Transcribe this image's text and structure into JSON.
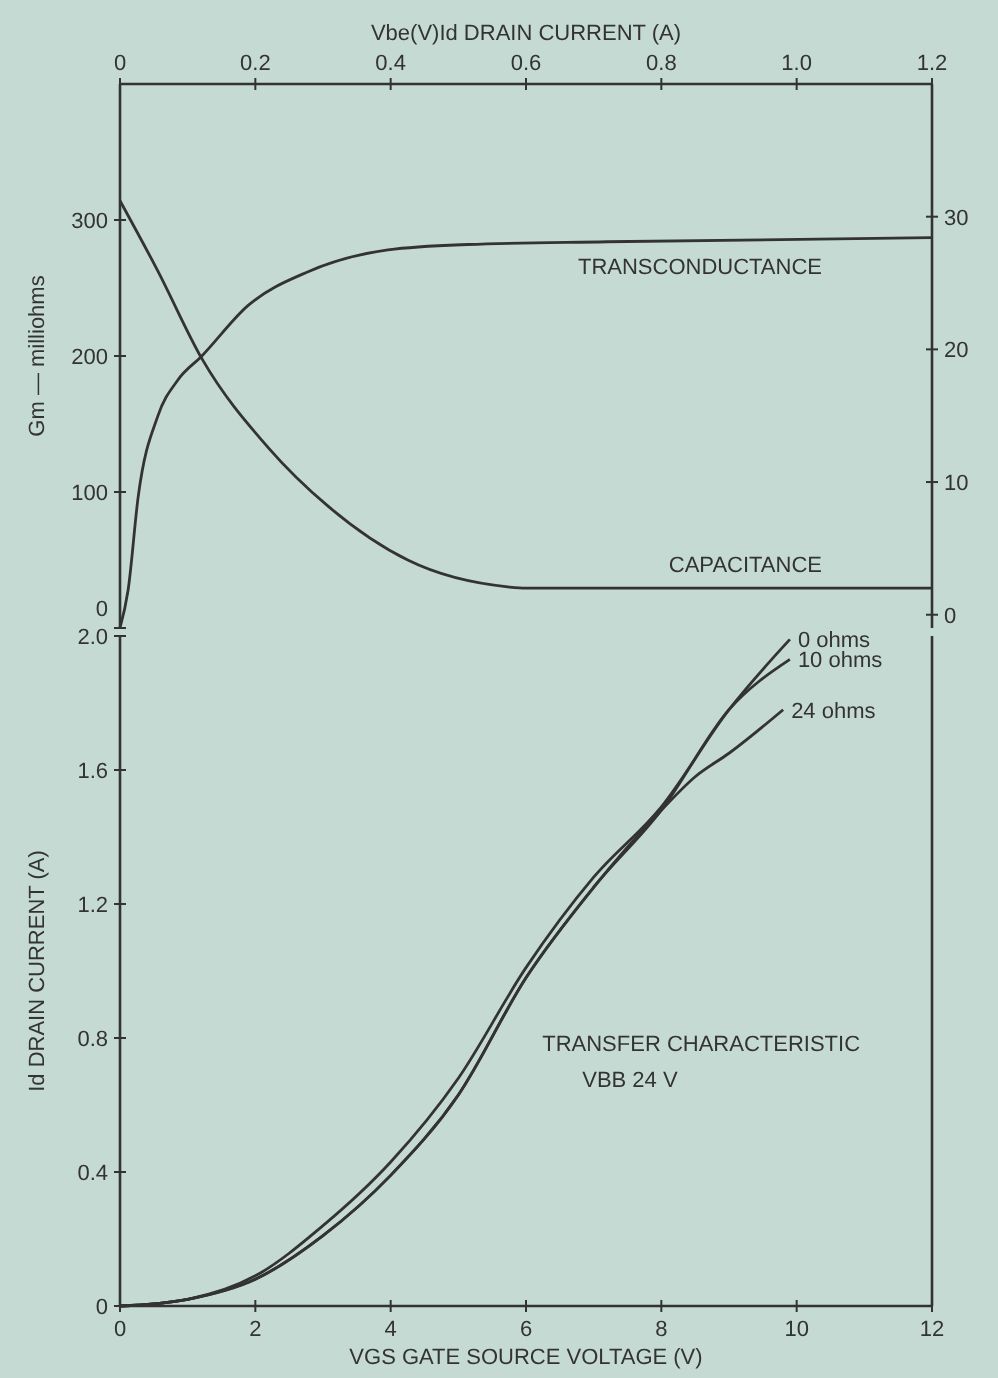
{
  "chart_data": [
    {
      "type": "line",
      "xlabel": "Vbe(V)Id DRAIN CURRENT (A)",
      "ylabel": "Gm — milliohms",
      "xlim": [
        0,
        1.2
      ],
      "xticks": [
        0,
        0.2,
        0.4,
        0.6,
        0.8,
        {
          "value": 1.0,
          "label": "1.0"
        },
        1.2
      ],
      "ylim": [
        0,
        400
      ],
      "yticks": [
        0,
        100,
        200,
        300
      ],
      "y2lim": [
        -1,
        40
      ],
      "y2ticks": [
        0,
        10,
        20,
        30
      ],
      "grid": false,
      "legend": false,
      "series": [
        {
          "name": "TRANSCONDUCTANCE",
          "color": "#333333",
          "x": [
            0,
            0.012,
            0.027,
            0.056,
            0.085,
            0.121,
            0.189,
            0.278,
            0.396,
            0.514,
            0.72,
            1.2
          ],
          "values": [
            0,
            28,
            97,
            156,
            182,
            200,
            237,
            262,
            278,
            282,
            284,
            287
          ]
        },
        {
          "name": "CAPACITANCE",
          "color": "#333333",
          "axis": "y2",
          "x": [
            0,
            0.056,
            0.121,
            0.219,
            0.307,
            0.426,
            0.573,
            0.6,
            1.2
          ],
          "values": [
            31.2,
            25.9,
            19.3,
            12.6,
            8.2,
            4.1,
            2.1,
            2,
            2
          ]
        }
      ]
    },
    {
      "type": "line",
      "xlabel": "VGS GATE SOURCE VOLTAGE (V)",
      "ylabel": "Id DRAIN CURRENT (A)",
      "xlim": [
        0,
        12
      ],
      "xticks": [
        0,
        2,
        4,
        6,
        8,
        10,
        12
      ],
      "ylim": [
        0,
        2
      ],
      "yticks": [
        0,
        0.4,
        0.8,
        1.2,
        1.6,
        {
          "value": 2,
          "label": "2.0"
        }
      ],
      "grid": false,
      "legend": false,
      "annotations": [
        "TRANSFER CHARACTERISTIC",
        "VBB 24 V"
      ],
      "series": [
        {
          "name": "0 ohms",
          "color": "#333333",
          "x": [
            0,
            1,
            2,
            3,
            4,
            5,
            6,
            7,
            8,
            9,
            9.9
          ],
          "values": [
            0,
            0.02,
            0.09,
            0.24,
            0.43,
            0.68,
            1.01,
            1.28,
            1.49,
            1.78,
            1.99
          ]
        },
        {
          "name": "10 ohms",
          "color": "#333333",
          "x": [
            0,
            1,
            2,
            3,
            4,
            5,
            6,
            7,
            8,
            9,
            9.9
          ],
          "values": [
            0,
            0.02,
            0.08,
            0.21,
            0.39,
            0.63,
            0.98,
            1.25,
            1.48,
            1.78,
            1.93
          ]
        },
        {
          "name": "24 ohms",
          "color": "#333333",
          "x": [
            0,
            1,
            2,
            3,
            4,
            5,
            6,
            7,
            8,
            8.5,
            9,
            9.8
          ],
          "values": [
            0,
            0.02,
            0.08,
            0.21,
            0.39,
            0.63,
            0.98,
            1.25,
            1.48,
            1.58,
            1.65,
            1.78
          ]
        }
      ]
    }
  ]
}
